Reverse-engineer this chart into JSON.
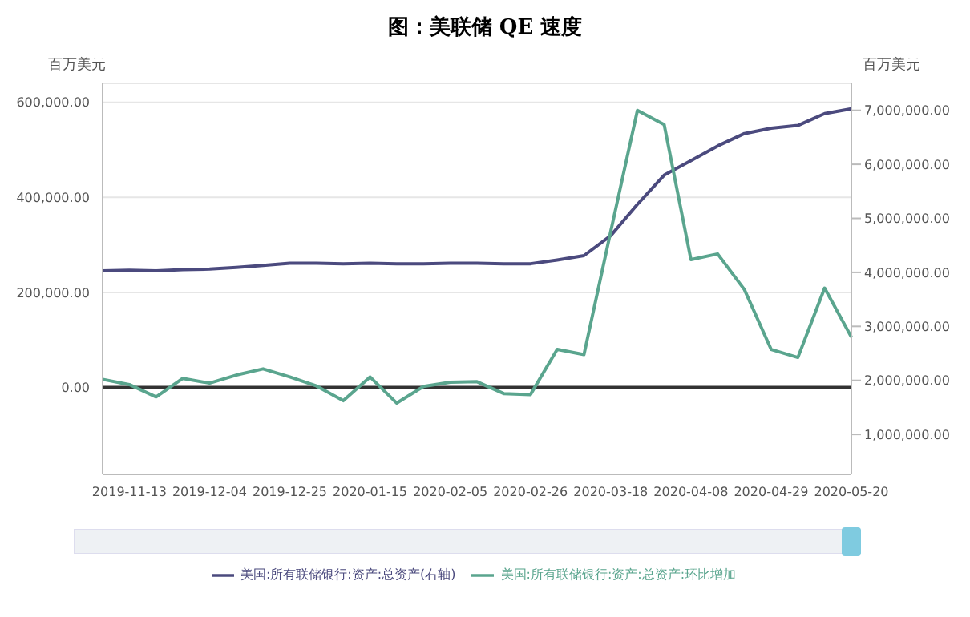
{
  "chart_data": {
    "type": "line",
    "title": "图：美联储 QE 速度",
    "ylabel": "百万美元",
    "y2label": "百万美元",
    "categories": [
      null,
      "2019-11-13",
      null,
      null,
      "2019-12-04",
      null,
      null,
      "2019-12-25",
      null,
      null,
      "2020-01-15",
      null,
      null,
      "2020-02-05",
      null,
      null,
      "2020-02-26",
      null,
      null,
      "2020-03-18",
      null,
      null,
      "2020-04-08",
      null,
      null,
      "2020-04-29",
      null,
      null,
      "2020-05-20"
    ],
    "series": [
      {
        "name": "美国:所有联储银行:资产:总资产(右轴)",
        "color": "#4b4a7e",
        "axis": "y2",
        "values": [
          4030000,
          4040000,
          4030000,
          4050000,
          4060000,
          4090000,
          4130000,
          4170000,
          4170000,
          4160000,
          4170000,
          4160000,
          4160000,
          4170000,
          4170000,
          4160000,
          4160000,
          4230000,
          4310000,
          4680000,
          5260000,
          5800000,
          6070000,
          6340000,
          6570000,
          6670000,
          6720000,
          6940000,
          7030000
        ]
      },
      {
        "name": "美国:所有联储银行:资产:总资产:环比增加",
        "color": "#5aa58e",
        "values": [
          17000,
          6000,
          -20000,
          19000,
          9000,
          26000,
          39000,
          22000,
          3000,
          -28000,
          22000,
          -33000,
          2000,
          11000,
          12000,
          -13000,
          -15000,
          80000,
          69000,
          328000,
          583000,
          553000,
          269000,
          281000,
          206000,
          80000,
          63000,
          209000,
          106000
        ]
      }
    ],
    "ylim": [
      -183000,
      640000
    ],
    "yticks": [
      {
        "value": 0,
        "label": "0.00"
      },
      {
        "value": 200000,
        "label": "200,000.00"
      },
      {
        "value": 400000,
        "label": "400,000.00"
      },
      {
        "value": 600000,
        "label": "600,000.00"
      }
    ],
    "y2lim": [
      260000,
      7500000
    ],
    "y2ticks": [
      {
        "value": 1000000,
        "label": "1,000,000.00"
      },
      {
        "value": 2000000,
        "label": "2,000,000.00"
      },
      {
        "value": 3000000,
        "label": "3,000,000.00"
      },
      {
        "value": 4000000,
        "label": "4,000,000.00"
      },
      {
        "value": 5000000,
        "label": "5,000,000.00"
      },
      {
        "value": 6000000,
        "label": "6,000,000.00"
      },
      {
        "value": 7000000,
        "label": "7,000,000.00"
      }
    ],
    "ref_lines": [
      {
        "axis": "y",
        "value": 0,
        "color": "#333333"
      }
    ],
    "grid": "y",
    "legend": "bottom",
    "marker": "none",
    "line_style": "solid"
  }
}
